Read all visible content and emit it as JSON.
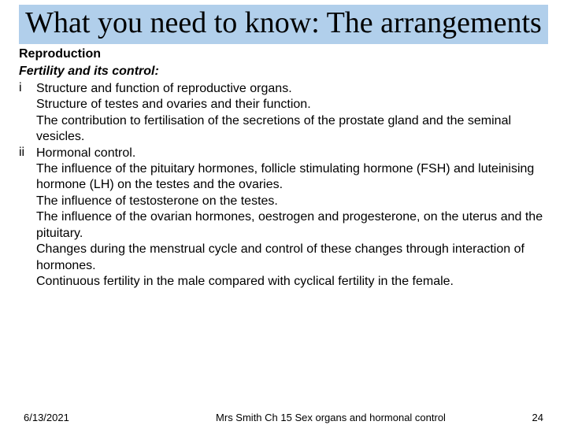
{
  "colors": {
    "title_band_bg": "#b1cfeb",
    "page_bg": "#ffffff",
    "text": "#000000"
  },
  "typography": {
    "title_font": "Times New Roman",
    "title_size_pt": 38,
    "body_font": "Arial",
    "body_size_pt": 16,
    "footer_size_pt": 13
  },
  "title": "What you need to know: The arrangements",
  "heading1": "Reproduction",
  "heading2": "Fertility and its control:",
  "items": [
    {
      "marker": "i",
      "lines": [
        "Structure and function of reproductive organs.",
        "Structure of testes and ovaries and their function.",
        "The contribution to fertilisation of the secretions of the prostate gland and the seminal vesicles."
      ]
    },
    {
      "marker": "ii",
      "lines": [
        "Hormonal control.",
        "The influence of the pituitary hormones, follicle stimulating hormone (FSH) and luteinising hormone (LH) on the testes and the ovaries.",
        "The influence of testosterone on the testes.",
        "The influence of the ovarian hormones, oestrogen and progesterone, on the uterus and the pituitary.",
        "Changes during the menstrual cycle and control of these changes through interaction of hormones.",
        "Continuous fertility in the male compared with cyclical fertility in the female."
      ]
    }
  ],
  "footer": {
    "date": "6/13/2021",
    "center": "Mrs Smith Ch 15 Sex organs and hormonal control",
    "page": "24"
  }
}
